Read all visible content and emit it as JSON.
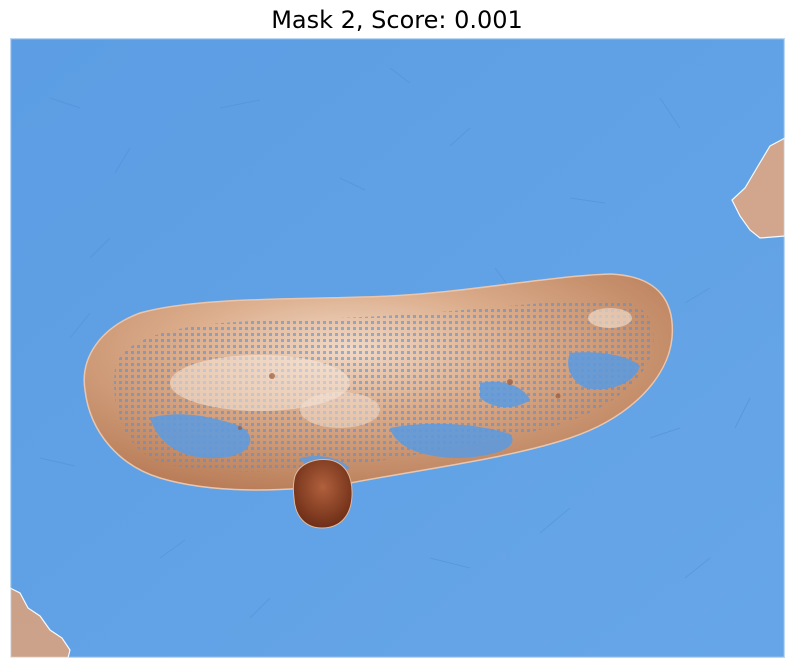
{
  "figure": {
    "title": "Mask 2, Score: 0.001"
  },
  "image": {
    "subject": "skin-lesion-with-segmentation-mask",
    "mask_color": "#5a9be3",
    "skin_color": "#d8a789",
    "lesion_color": "#b86a45",
    "dark_spot_color": "#8a3e22"
  }
}
